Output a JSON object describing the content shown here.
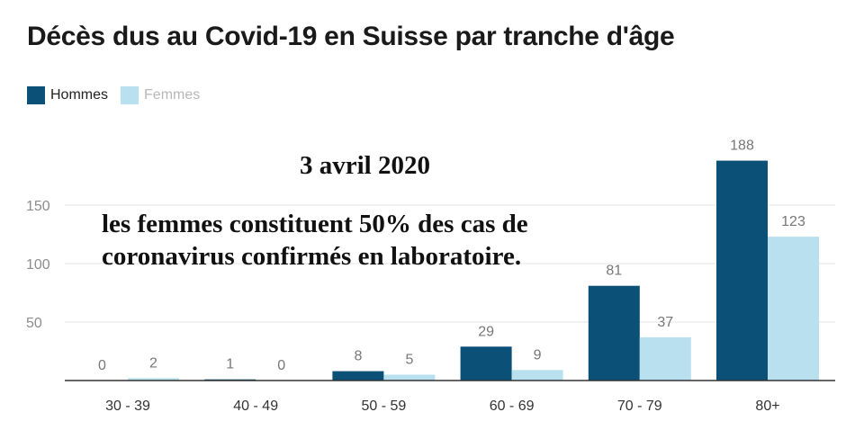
{
  "chart_data": {
    "type": "bar",
    "title": "Décès dus au Covid-19 en Suisse par tranche d'âge",
    "categories": [
      "30 - 39",
      "40 - 49",
      "50 - 59",
      "60 - 69",
      "70 - 79",
      "80+"
    ],
    "series": [
      {
        "name": "Hommes",
        "values": [
          0,
          1,
          8,
          29,
          81,
          188
        ],
        "color": "#0b5077"
      },
      {
        "name": "Femmes",
        "values": [
          2,
          0,
          5,
          9,
          37,
          123
        ],
        "color": "#b8e0ef"
      }
    ],
    "yticks": [
      50,
      100,
      150
    ],
    "ylim": [
      0,
      200
    ],
    "grid": true,
    "legend_position": "top-left",
    "annotations": {
      "date": "3 avril 2020",
      "line1": "les femmes constituent 50% des cas de",
      "line2": "coronavirus confirmés en laboratoire."
    }
  }
}
